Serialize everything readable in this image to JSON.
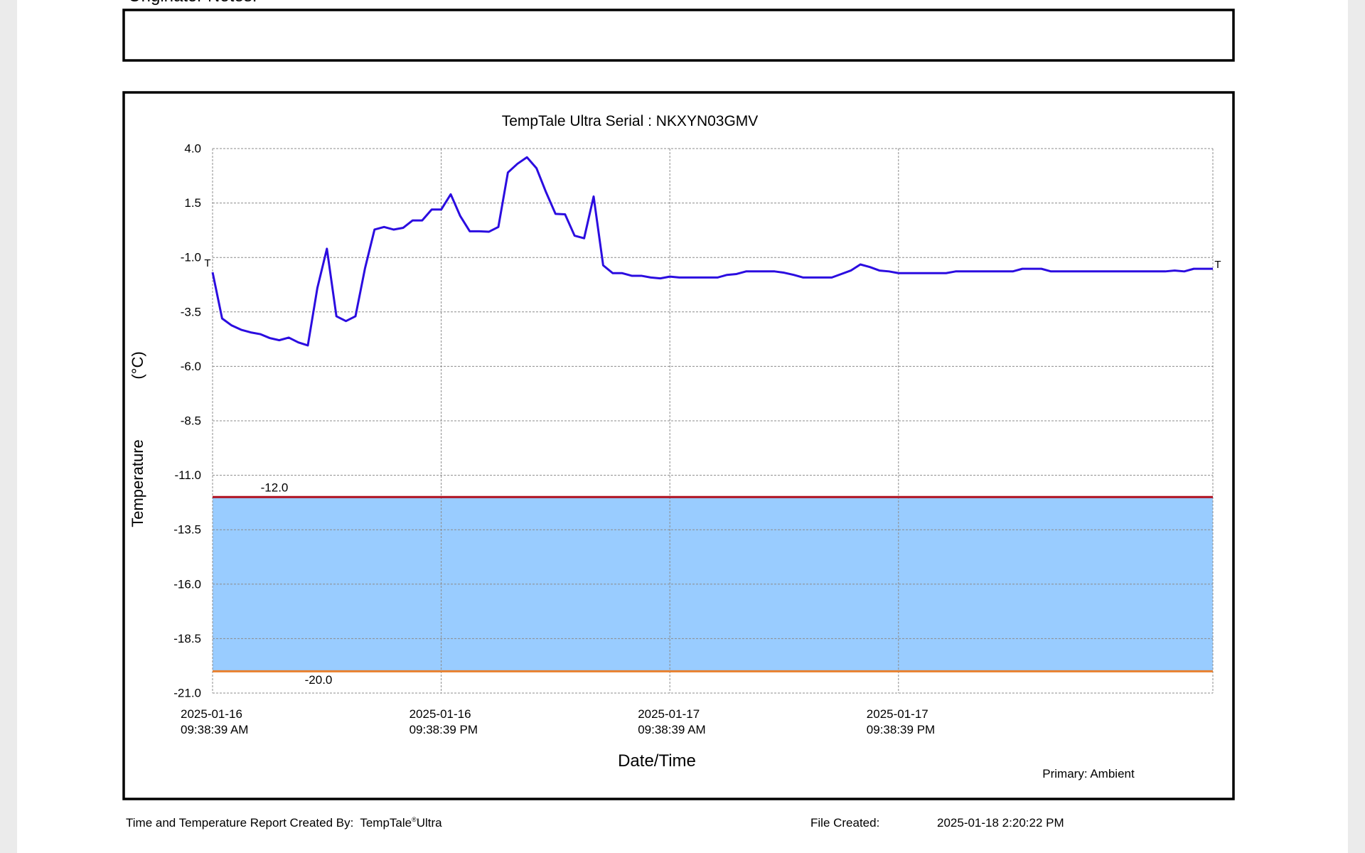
{
  "page": {
    "notes_heading": "Originator Notes:",
    "created_by_label": "Time and Temperature Report Created By:",
    "product_name": "TempTale",
    "product_mark": "®",
    "product_suffix": "Ultra",
    "file_created_label": "File Created:",
    "file_created_value": "2025-01-18  2:20:22 PM"
  },
  "chart_data": {
    "type": "line",
    "title": "TempTale Ultra  Serial : NKXYN03GMV",
    "xlabel": "Date/Time",
    "ylabel": [
      "Temperature",
      "(°C)"
    ],
    "end_marks": [
      "T",
      "T"
    ],
    "grid": true,
    "xlim": [
      "2025-01-16T09:38:39",
      "2025-01-18T14:08:39"
    ],
    "xticks": [
      {
        "value": "2025-01-16T09:38:39",
        "label": [
          "2025-01-16",
          "09:38:39 AM"
        ]
      },
      {
        "value": "2025-01-16T21:38:39",
        "label": [
          "2025-01-16",
          "09:38:39 PM"
        ]
      },
      {
        "value": "2025-01-17T09:38:39",
        "label": [
          "2025-01-17",
          "09:38:39 AM"
        ]
      },
      {
        "value": "2025-01-17T21:38:39",
        "label": [
          "2025-01-17",
          "09:38:39 PM"
        ]
      }
    ],
    "ylim": [
      -21,
      4
    ],
    "yticks": [
      {
        "value": 4,
        "label": "4.0"
      },
      {
        "value": 1.5,
        "label": "1.5"
      },
      {
        "value": -1,
        "label": "-1.0"
      },
      {
        "value": -3.5,
        "label": "-3.5"
      },
      {
        "value": -6,
        "label": "-6.0"
      },
      {
        "value": -8.5,
        "label": "-8.5"
      },
      {
        "value": -11,
        "label": "-11.0"
      },
      {
        "value": -13.5,
        "label": "-13.5"
      },
      {
        "value": -16,
        "label": "-16.0"
      },
      {
        "value": -18.5,
        "label": "-18.5"
      },
      {
        "value": -21,
        "label": "-21.0"
      }
    ],
    "limits": [
      {
        "value": -12,
        "label": "-12.0",
        "color": "#b0101e"
      },
      {
        "value": -20,
        "label": "-20.0",
        "color": "#e8802e"
      }
    ],
    "band_color": "#99ccff",
    "x": [
      "2025-01-16T09:38:39",
      "2025-01-16T10:08:39",
      "2025-01-16T10:38:39",
      "2025-01-16T11:08:39",
      "2025-01-16T11:38:39",
      "2025-01-16T12:08:39",
      "2025-01-16T12:38:39",
      "2025-01-16T13:08:39",
      "2025-01-16T13:38:39",
      "2025-01-16T14:08:39",
      "2025-01-16T14:38:39",
      "2025-01-16T15:08:39",
      "2025-01-16T15:38:39",
      "2025-01-16T16:08:39",
      "2025-01-16T16:38:39",
      "2025-01-16T17:08:39",
      "2025-01-16T17:38:39",
      "2025-01-16T18:08:39",
      "2025-01-16T18:38:39",
      "2025-01-16T19:08:39",
      "2025-01-16T19:38:39",
      "2025-01-16T20:08:39",
      "2025-01-16T20:38:39",
      "2025-01-16T21:08:39",
      "2025-01-16T21:38:39",
      "2025-01-16T22:08:39",
      "2025-01-16T22:38:39",
      "2025-01-16T23:08:39",
      "2025-01-16T23:38:39",
      "2025-01-17T00:08:39",
      "2025-01-17T00:38:39",
      "2025-01-17T01:08:39",
      "2025-01-17T01:38:39",
      "2025-01-17T02:08:39",
      "2025-01-17T02:38:39",
      "2025-01-17T03:08:39",
      "2025-01-17T03:38:39",
      "2025-01-17T04:08:39",
      "2025-01-17T04:38:39",
      "2025-01-17T05:08:39",
      "2025-01-17T05:38:39",
      "2025-01-17T06:08:39",
      "2025-01-17T06:38:39",
      "2025-01-17T07:08:39",
      "2025-01-17T07:38:39",
      "2025-01-17T08:08:39",
      "2025-01-17T08:38:39",
      "2025-01-17T09:08:39",
      "2025-01-17T09:38:39",
      "2025-01-17T10:08:39",
      "2025-01-17T10:38:39",
      "2025-01-17T11:08:39",
      "2025-01-17T11:38:39",
      "2025-01-17T12:08:39",
      "2025-01-17T12:38:39",
      "2025-01-17T13:08:39",
      "2025-01-17T13:38:39",
      "2025-01-17T14:08:39",
      "2025-01-17T14:38:39",
      "2025-01-17T15:08:39",
      "2025-01-17T15:38:39",
      "2025-01-17T16:08:39",
      "2025-01-17T16:38:39",
      "2025-01-17T17:08:39",
      "2025-01-17T17:38:39",
      "2025-01-17T18:08:39",
      "2025-01-17T18:38:39",
      "2025-01-17T19:08:39",
      "2025-01-17T19:38:39",
      "2025-01-17T20:08:39",
      "2025-01-17T20:38:39",
      "2025-01-17T21:08:39",
      "2025-01-17T21:38:39",
      "2025-01-17T22:08:39",
      "2025-01-17T22:38:39",
      "2025-01-17T23:08:39",
      "2025-01-17T23:38:39",
      "2025-01-18T00:08:39",
      "2025-01-18T00:38:39",
      "2025-01-18T01:08:39",
      "2025-01-18T01:38:39",
      "2025-01-18T02:08:39",
      "2025-01-18T02:38:39",
      "2025-01-18T03:08:39",
      "2025-01-18T03:38:39",
      "2025-01-18T04:08:39",
      "2025-01-18T04:38:39",
      "2025-01-18T05:08:39",
      "2025-01-18T05:38:39",
      "2025-01-18T06:08:39",
      "2025-01-18T06:38:39",
      "2025-01-18T07:08:39",
      "2025-01-18T07:38:39",
      "2025-01-18T08:08:39",
      "2025-01-18T08:38:39",
      "2025-01-18T09:08:39",
      "2025-01-18T09:38:39",
      "2025-01-18T10:08:39",
      "2025-01-18T10:38:39",
      "2025-01-18T11:08:39",
      "2025-01-18T11:38:39",
      "2025-01-18T12:08:39",
      "2025-01-18T12:38:39",
      "2025-01-18T13:08:39",
      "2025-01-18T13:38:39",
      "2025-01-18T14:08:39"
    ],
    "series": [
      {
        "name": "Primary: Ambient",
        "color": "#2b0ce0",
        "values": [
          -1.68,
          -3.8,
          -4.12,
          -4.32,
          -4.44,
          -4.52,
          -4.7,
          -4.8,
          -4.68,
          -4.9,
          -5.04,
          -2.4,
          -0.6,
          -3.7,
          -3.92,
          -3.7,
          -1.5,
          0.28,
          0.4,
          0.28,
          0.36,
          0.7,
          0.7,
          1.2,
          1.2,
          1.9,
          0.9,
          0.2,
          0.2,
          0.18,
          0.4,
          2.9,
          3.3,
          3.6,
          3.1,
          2.0,
          1.0,
          0.98,
          0.0,
          -0.12,
          1.8,
          -1.36,
          -1.72,
          -1.72,
          -1.84,
          -1.84,
          -1.92,
          -1.96,
          -1.88,
          -1.92,
          -1.92,
          -1.92,
          -1.92,
          -1.92,
          -1.8,
          -1.76,
          -1.64,
          -1.64,
          -1.64,
          -1.64,
          -1.7,
          -1.8,
          -1.92,
          -1.92,
          -1.92,
          -1.92,
          -1.76,
          -1.6,
          -1.32,
          -1.44,
          -1.6,
          -1.64,
          -1.72,
          -1.72,
          -1.72,
          -1.72,
          -1.72,
          -1.72,
          -1.64,
          -1.64,
          -1.64,
          -1.64,
          -1.64,
          -1.64,
          -1.64,
          -1.52,
          -1.52,
          -1.52,
          -1.64,
          -1.64,
          -1.64,
          -1.64,
          -1.64,
          -1.64,
          -1.64,
          -1.64,
          -1.64,
          -1.64,
          -1.64,
          -1.64,
          -1.64,
          -1.6,
          -1.64,
          -1.52,
          -1.52,
          -1.52
        ]
      }
    ]
  }
}
